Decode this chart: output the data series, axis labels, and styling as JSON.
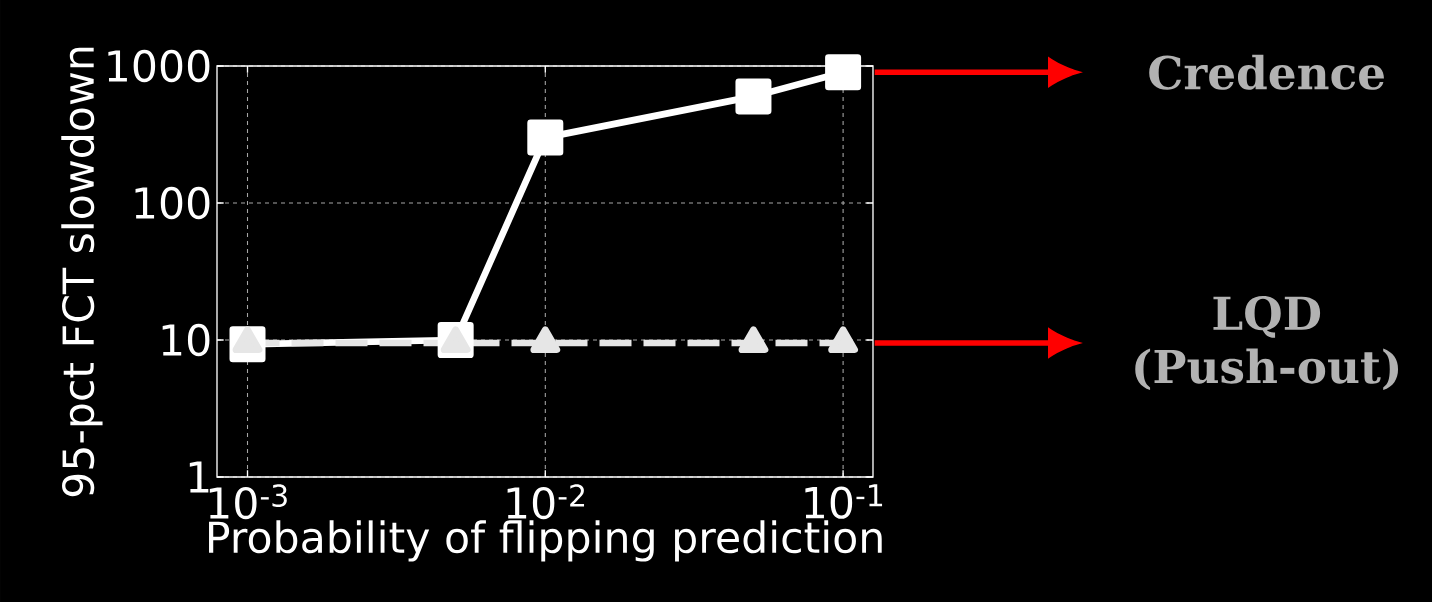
{
  "chart_data": {
    "type": "line",
    "xlabel": "Probability of flipping prediction",
    "ylabel": "95-pct FCT slowdown",
    "x": [
      0.001,
      0.005,
      0.01,
      0.05,
      0.1
    ],
    "series": [
      {
        "name": "Credence",
        "color": "#ffffff",
        "values": [
          9.3,
          10,
          300,
          600,
          900
        ],
        "marker": "square",
        "line_style": "solid"
      },
      {
        "name": "LQD (Push-out)",
        "color": "#e6e6e6",
        "values": [
          9.5,
          9.5,
          9.5,
          9.5,
          9.5
        ],
        "marker": "triangle",
        "line_style": "dashed"
      }
    ],
    "log": "xy",
    "grid": true,
    "xlim": [
      0.00079,
      0.126
    ],
    "ylim": [
      1,
      1000
    ],
    "xticks": [
      {
        "value": 0.001,
        "label": "10$^{-3}$"
      },
      {
        "value": 0.01,
        "label": "10$^{-2}$"
      },
      {
        "value": 0.1,
        "label": "10$^{-1}$"
      }
    ],
    "yticks": [
      1,
      10,
      100,
      1000
    ]
  }
}
